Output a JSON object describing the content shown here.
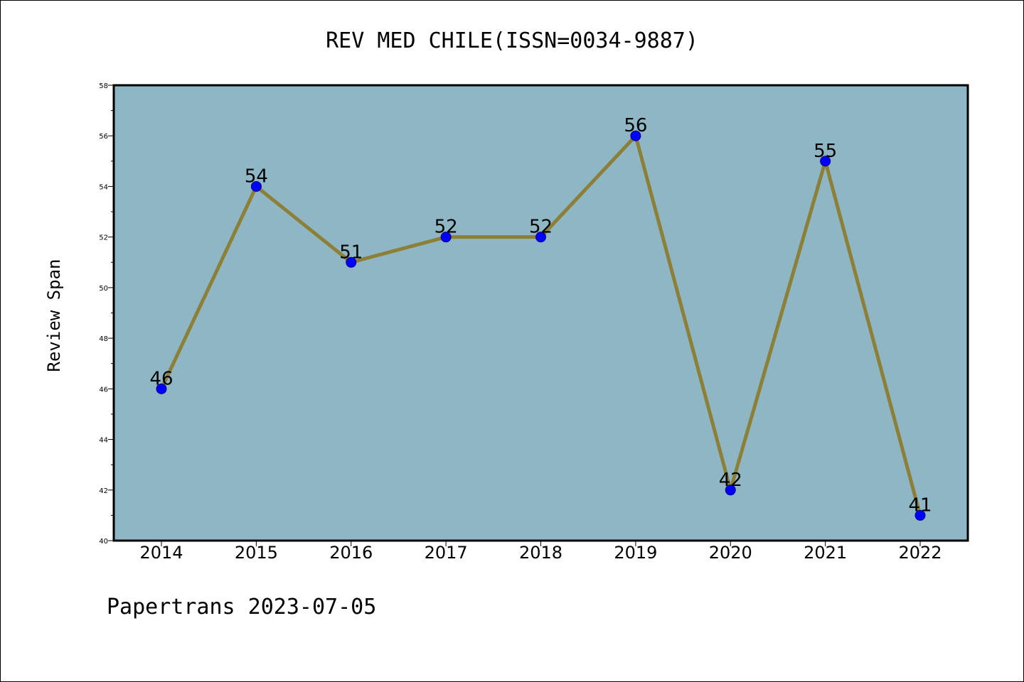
{
  "chart_data": {
    "type": "line",
    "title": "REV MED CHILE(ISSN=0034-9887)",
    "ylabel": "Review Span",
    "xlabel": "",
    "categories": [
      "2014",
      "2015",
      "2016",
      "2017",
      "2018",
      "2019",
      "2020",
      "2021",
      "2022"
    ],
    "values": [
      46,
      54,
      51,
      52,
      52,
      56,
      42,
      55,
      41
    ],
    "ylim": [
      40,
      58
    ],
    "yticks": [
      40,
      42,
      44,
      46,
      48,
      50,
      52,
      54,
      56,
      58
    ],
    "grid": false,
    "legend": "none",
    "colors": {
      "plot_background": "#8fb6c4",
      "line": "#8c8038",
      "marker": "#0000ff",
      "marker_edge": "#000080"
    }
  },
  "footer": "Papertrans 2023-07-05"
}
